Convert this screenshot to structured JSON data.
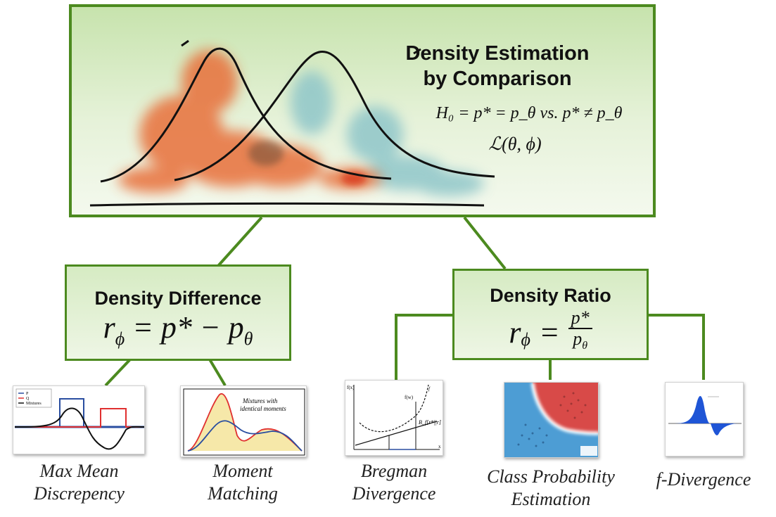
{
  "top": {
    "title_line1": "Density Estimation",
    "title_line2": "by Comparison",
    "hypothesis": "H₀ = p* = p_θ vs. p* ≠ p_θ",
    "loss": "ℒ(θ, ϕ)"
  },
  "difference": {
    "title": "Density Difference",
    "formula_lhs": "r",
    "formula_sub": "ϕ",
    "formula_rhs": "= p* − p",
    "formula_rhs_sub": "θ"
  },
  "ratio": {
    "title": "Density Ratio",
    "formula_lhs": "r",
    "formula_sub": "ϕ",
    "formula_eq": "=",
    "numerator": "p*",
    "denominator": "p",
    "denominator_sub": "θ"
  },
  "leaves": [
    {
      "line1": "Max Mean",
      "line2": "Discrepency"
    },
    {
      "line1": "Moment",
      "line2": "Matching"
    },
    {
      "line1": "Bregman",
      "line2": "Divergence"
    },
    {
      "line1": "Class Probability",
      "line2": "Estimation"
    },
    {
      "line1": "f-Divergence",
      "line2": ""
    }
  ],
  "thumbs": {
    "mmd_legend": [
      "P",
      "Q",
      "Mixtures"
    ],
    "moment_caption_line1": "Mixtures with",
    "moment_caption_line2": "identical moments",
    "bregman_fx": "f(x)",
    "bregman_f": "f",
    "bregman_fw": "f(w)",
    "bregman_label": "B_f[r*||r]",
    "bregman_x": "x"
  },
  "colors": {
    "accent_green": "#4c8a1f",
    "orange": "#e8703a",
    "teal": "#8fc6c9"
  }
}
